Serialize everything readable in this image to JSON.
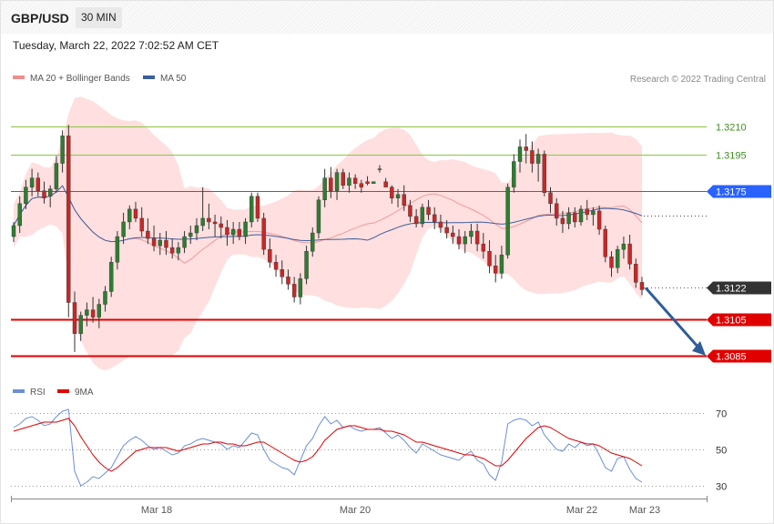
{
  "header": {
    "symbol": "GBP/USD",
    "timeframe": "30 MIN",
    "datetime": "Tuesday, March 22, 2022 7:02:52 AM CET"
  },
  "legend": {
    "bollinger": "MA 20 + Bollinger Bands",
    "ma50": "MA 50",
    "rsi": "RSI",
    "rsi_ma": "9MA"
  },
  "credit": "Research © 2022 Trading Central",
  "colors": {
    "bull": "#2e7d32",
    "bear": "#c62828",
    "band": "#ffd9d9",
    "ma20": "#f19a9a",
    "ma50": "#3a5f9e",
    "resistance": "#8cc63f",
    "pivot": "#2962ff",
    "support": "#e00000",
    "arrow": "#2f5d9a",
    "rsi": "#6b8fd6",
    "rsi_ma": "#e00000"
  },
  "chart_data": [
    {
      "type": "candlestick",
      "title": "GBP/USD",
      "timeframe": "30 MIN",
      "x_ticks": [
        "Mar 18",
        "Mar 20",
        "Mar 22",
        "Mar 23"
      ],
      "ylim": [
        1.3075,
        1.3235
      ],
      "levels": [
        {
          "value": 1.321,
          "label": "1.3210",
          "kind": "resistance"
        },
        {
          "value": 1.3195,
          "label": "1.3195",
          "kind": "resistance"
        },
        {
          "value": 1.3175,
          "label": "1.3175",
          "kind": "pivot"
        },
        {
          "value": 1.3122,
          "label": "1.3122",
          "kind": "last"
        },
        {
          "value": 1.3105,
          "label": "1.3105",
          "kind": "support"
        },
        {
          "value": 1.3085,
          "label": "1.3085",
          "kind": "support"
        }
      ],
      "forecast_arrow": {
        "from": 1.3122,
        "to": 1.3085
      },
      "series": [
        {
          "name": "MA 20 + Bollinger Bands",
          "style": "band"
        },
        {
          "name": "MA 50",
          "style": "line"
        }
      ],
      "candles": [
        [
          1.315,
          1.3158,
          1.3147,
          1.3156
        ],
        [
          1.3156,
          1.3172,
          1.3152,
          1.3168
        ],
        [
          1.3168,
          1.3181,
          1.3165,
          1.3177
        ],
        [
          1.3177,
          1.3187,
          1.3172,
          1.3182
        ],
        [
          1.3182,
          1.3185,
          1.3172,
          1.3175
        ],
        [
          1.3175,
          1.318,
          1.3168,
          1.3171
        ],
        [
          1.3172,
          1.3178,
          1.3166,
          1.3176
        ],
        [
          1.3176,
          1.3194,
          1.3174,
          1.319
        ],
        [
          1.319,
          1.3208,
          1.3185,
          1.3205
        ],
        [
          1.3205,
          1.3211,
          1.3106,
          1.3114
        ],
        [
          1.3114,
          1.312,
          1.3087,
          1.3097
        ],
        [
          1.3097,
          1.3109,
          1.3093,
          1.3107
        ],
        [
          1.3107,
          1.3114,
          1.3101,
          1.311
        ],
        [
          1.311,
          1.3117,
          1.3103,
          1.3106
        ],
        [
          1.3106,
          1.3116,
          1.31,
          1.3113
        ],
        [
          1.3113,
          1.3123,
          1.3109,
          1.312
        ],
        [
          1.312,
          1.3139,
          1.3117,
          1.3136
        ],
        [
          1.3136,
          1.3153,
          1.3132,
          1.315
        ],
        [
          1.315,
          1.3163,
          1.3146,
          1.3158
        ],
        [
          1.3158,
          1.3167,
          1.3154,
          1.3165
        ],
        [
          1.3165,
          1.3169,
          1.3158,
          1.316
        ],
        [
          1.316,
          1.3166,
          1.315,
          1.3153
        ],
        [
          1.3153,
          1.316,
          1.3146,
          1.3149
        ],
        [
          1.3149,
          1.3156,
          1.3142,
          1.3145
        ],
        [
          1.3145,
          1.3152,
          1.314,
          1.3148
        ],
        [
          1.3148,
          1.3153,
          1.314,
          1.3144
        ],
        [
          1.3144,
          1.3149,
          1.3138,
          1.3141
        ],
        [
          1.3141,
          1.3147,
          1.3137,
          1.3144
        ],
        [
          1.3144,
          1.3153,
          1.3141,
          1.315
        ],
        [
          1.315,
          1.3156,
          1.3146,
          1.3152
        ],
        [
          1.3152,
          1.316,
          1.3148,
          1.3156
        ],
        [
          1.3156,
          1.3177,
          1.3153,
          1.316
        ],
        [
          1.316,
          1.3168,
          1.3154,
          1.3158
        ],
        [
          1.3158,
          1.3162,
          1.315,
          1.3157
        ],
        [
          1.3157,
          1.3161,
          1.3149,
          1.3155
        ],
        [
          1.3155,
          1.3159,
          1.3145,
          1.3151
        ],
        [
          1.3151,
          1.3158,
          1.3146,
          1.3154
        ],
        [
          1.3154,
          1.3158,
          1.3148,
          1.315
        ],
        [
          1.315,
          1.316,
          1.3146,
          1.3158
        ],
        [
          1.3158,
          1.3174,
          1.3155,
          1.3172
        ],
        [
          1.3172,
          1.3174,
          1.3158,
          1.316
        ],
        [
          1.316,
          1.3163,
          1.314,
          1.3143
        ],
        [
          1.3143,
          1.3149,
          1.3133,
          1.3136
        ],
        [
          1.3136,
          1.314,
          1.3128,
          1.3132
        ],
        [
          1.3132,
          1.3137,
          1.3124,
          1.3128
        ],
        [
          1.3128,
          1.3132,
          1.3121,
          1.3124
        ],
        [
          1.3124,
          1.3128,
          1.3114,
          1.3117
        ],
        [
          1.3117,
          1.313,
          1.3113,
          1.3127
        ],
        [
          1.3127,
          1.3145,
          1.3124,
          1.3142
        ],
        [
          1.3142,
          1.3155,
          1.3139,
          1.3152
        ],
        [
          1.3152,
          1.3172,
          1.3149,
          1.317
        ],
        [
          1.317,
          1.3187,
          1.3166,
          1.3182
        ],
        [
          1.3182,
          1.3188,
          1.3171,
          1.3175
        ],
        [
          1.3175,
          1.3187,
          1.317,
          1.3185
        ],
        [
          1.3185,
          1.3187,
          1.3176,
          1.3178
        ],
        [
          1.3178,
          1.3185,
          1.3174,
          1.3182
        ],
        [
          1.3182,
          1.3184,
          1.3176,
          1.3179
        ],
        [
          1.3179,
          1.3181,
          1.3174,
          1.3177
        ],
        [
          1.318,
          1.3183,
          1.3178,
          1.3179
        ],
        [
          1.3179,
          1.318,
          1.3179,
          1.318
        ],
        [
          1.3187,
          1.3189,
          1.3185,
          1.3187
        ],
        [
          1.318,
          1.3182,
          1.3177,
          1.3177
        ],
        [
          1.3177,
          1.3178,
          1.3168,
          1.3171
        ],
        [
          1.3171,
          1.3176,
          1.3166,
          1.3173
        ],
        [
          1.3173,
          1.3178,
          1.3164,
          1.3167
        ],
        [
          1.3167,
          1.317,
          1.3158,
          1.3161
        ],
        [
          1.3161,
          1.3165,
          1.3155,
          1.3157
        ],
        [
          1.3157,
          1.3168,
          1.3155,
          1.3166
        ],
        [
          1.3166,
          1.317,
          1.3159,
          1.3162
        ],
        [
          1.3162,
          1.3166,
          1.3154,
          1.3158
        ],
        [
          1.3158,
          1.3162,
          1.3152,
          1.3155
        ],
        [
          1.3155,
          1.3159,
          1.3149,
          1.3152
        ],
        [
          1.3152,
          1.3156,
          1.3146,
          1.315
        ],
        [
          1.315,
          1.3154,
          1.3143,
          1.3146
        ],
        [
          1.3146,
          1.3153,
          1.3141,
          1.315
        ],
        [
          1.315,
          1.3157,
          1.3146,
          1.3153
        ],
        [
          1.3153,
          1.3157,
          1.3142,
          1.3146
        ],
        [
          1.3146,
          1.3152,
          1.3138,
          1.3142
        ],
        [
          1.3142,
          1.3148,
          1.313,
          1.3134
        ],
        [
          1.3134,
          1.314,
          1.3125,
          1.313
        ],
        [
          1.313,
          1.3145,
          1.3127,
          1.314
        ],
        [
          1.314,
          1.3179,
          1.3138,
          1.3177
        ],
        [
          1.3177,
          1.3195,
          1.3174,
          1.3191
        ],
        [
          1.3191,
          1.3203,
          1.3185,
          1.3199
        ],
        [
          1.3199,
          1.3206,
          1.319,
          1.3197
        ],
        [
          1.3197,
          1.3202,
          1.3185,
          1.319
        ],
        [
          1.319,
          1.3198,
          1.318,
          1.3195
        ],
        [
          1.3195,
          1.3197,
          1.3172,
          1.3174
        ],
        [
          1.3174,
          1.3177,
          1.3163,
          1.3168
        ],
        [
          1.3168,
          1.3171,
          1.3156,
          1.316
        ],
        [
          1.316,
          1.3164,
          1.3152,
          1.3157
        ],
        [
          1.3157,
          1.3166,
          1.3154,
          1.3163
        ],
        [
          1.3163,
          1.3166,
          1.3155,
          1.3158
        ],
        [
          1.3158,
          1.3167,
          1.3156,
          1.3165
        ],
        [
          1.3165,
          1.317,
          1.3159,
          1.3162
        ],
        [
          1.3162,
          1.3166,
          1.3156,
          1.3164
        ],
        [
          1.3164,
          1.3167,
          1.3151,
          1.3154
        ],
        [
          1.3154,
          1.3156,
          1.3136,
          1.3139
        ],
        [
          1.3139,
          1.3142,
          1.3128,
          1.3133
        ],
        [
          1.3133,
          1.3145,
          1.313,
          1.3143
        ],
        [
          1.3143,
          1.315,
          1.3138,
          1.3146
        ],
        [
          1.3146,
          1.3151,
          1.3132,
          1.3135
        ],
        [
          1.3135,
          1.3138,
          1.3122,
          1.3125
        ],
        [
          1.3125,
          1.3128,
          1.3118,
          1.3121
        ]
      ]
    },
    {
      "type": "line",
      "title": "RSI",
      "series": [
        {
          "name": "RSI"
        },
        {
          "name": "9MA"
        }
      ],
      "y_ticks": [
        70,
        50,
        30
      ],
      "ylim": [
        25,
        75
      ],
      "rsi": [
        62,
        64,
        67,
        68,
        66,
        63,
        64,
        68,
        71,
        72,
        38,
        30,
        32,
        35,
        34,
        37,
        40,
        46,
        52,
        55,
        57,
        55,
        52,
        50,
        51,
        49,
        47,
        48,
        52,
        53,
        55,
        56,
        55,
        54,
        53,
        50,
        52,
        51,
        55,
        59,
        58,
        50,
        44,
        42,
        40,
        39,
        36,
        44,
        52,
        56,
        63,
        68,
        64,
        66,
        62,
        63,
        61,
        60,
        61,
        61,
        62,
        59,
        56,
        58,
        55,
        51,
        48,
        53,
        51,
        49,
        47,
        46,
        45,
        44,
        47,
        49,
        44,
        42,
        36,
        33,
        43,
        64,
        66,
        67,
        66,
        63,
        65,
        58,
        54,
        50,
        49,
        53,
        51,
        54,
        52,
        53,
        47,
        40,
        38,
        45,
        46,
        39,
        34,
        32
      ],
      "ma": [
        60,
        61,
        62,
        63,
        64,
        65,
        65,
        65,
        66,
        67,
        63,
        57,
        52,
        47,
        43,
        40,
        38,
        40,
        43,
        46,
        49,
        50,
        51,
        51,
        51,
        51,
        50,
        49,
        50,
        51,
        52,
        53,
        53,
        54,
        54,
        53,
        53,
        52,
        52,
        53,
        54,
        54,
        52,
        50,
        48,
        46,
        44,
        43,
        44,
        46,
        50,
        55,
        58,
        61,
        62,
        63,
        63,
        62,
        61,
        61,
        61,
        60,
        60,
        59,
        58,
        56,
        54,
        54,
        53,
        52,
        51,
        50,
        49,
        48,
        47,
        47,
        46,
        45,
        43,
        41,
        41,
        44,
        48,
        52,
        56,
        59,
        62,
        63,
        62,
        60,
        58,
        56,
        55,
        54,
        53,
        53,
        52,
        50,
        48,
        47,
        46,
        45,
        43,
        41
      ]
    }
  ]
}
